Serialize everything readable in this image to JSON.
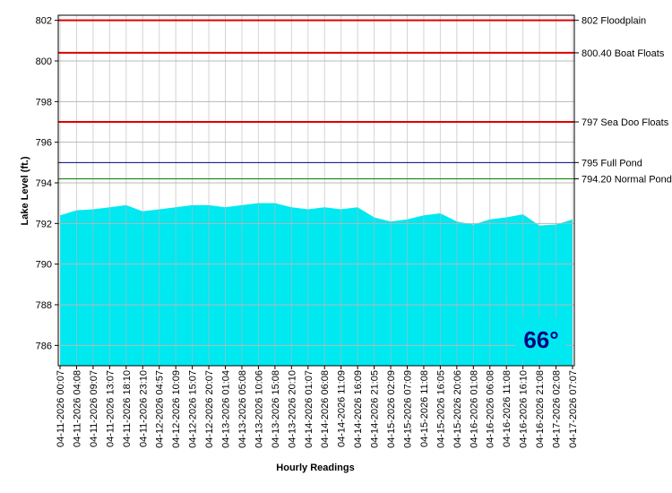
{
  "chart_data": {
    "type": "area",
    "y_label": "Lake Level (ft.)",
    "x_label": "Hourly Readings",
    "categories": [
      "04-11-2026 00:07",
      "04-11-2026 04:08",
      "04-11-2026 09:07",
      "04-11-2026 13:07",
      "04-11-2026 18:10",
      "04-11-2026 23:10",
      "04-12-2026 04:57",
      "04-12-2026 10:09",
      "04-12-2026 15:07",
      "04-12-2026 20:07",
      "04-13-2026 01:04",
      "04-13-2026 05:08",
      "04-13-2026 10:06",
      "04-13-2026 15:08",
      "04-13-2026 20:10",
      "04-14-2026 01:07",
      "04-14-2026 06:08",
      "04-14-2026 11:09",
      "04-14-2026 16:09",
      "04-14-2026 21:05",
      "04-15-2026 02:09",
      "04-15-2026 07:09",
      "04-15-2026 11:08",
      "04-15-2026 16:05",
      "04-15-2026 20:06",
      "04-16-2026 01:08",
      "04-16-2026 06:08",
      "04-16-2026 11:08",
      "04-16-2026 16:10",
      "04-16-2026 21:08",
      "04-17-2026 02:08",
      "04-17-2026 07:07"
    ],
    "values": [
      792.4,
      792.65,
      792.7,
      792.8,
      792.9,
      792.6,
      792.7,
      792.8,
      792.9,
      792.9,
      792.8,
      792.9,
      793.0,
      793.0,
      792.8,
      792.7,
      792.8,
      792.7,
      792.8,
      792.3,
      792.1,
      792.2,
      792.4,
      792.5,
      792.1,
      791.95,
      792.2,
      792.3,
      792.45,
      791.9,
      791.95,
      792.2
    ],
    "color": "#00e8f0",
    "ylim": [
      785,
      802.25
    ],
    "yticks": [
      786,
      788,
      790,
      792,
      794,
      796,
      798,
      800,
      802
    ],
    "grid": true,
    "reference_lines": [
      {
        "value": 802,
        "label": "802 Floodplain",
        "color": "#e00000"
      },
      {
        "value": 800.4,
        "label": "800.40 Boat Floats",
        "color": "#e00000"
      },
      {
        "value": 797,
        "label": "797 Sea Doo Floats",
        "color": "#e00000"
      },
      {
        "value": 795,
        "label": "795 Full Pond",
        "color": "#000080"
      },
      {
        "value": 794.2,
        "label": "794.20 Normal Pond",
        "color": "#008000"
      }
    ],
    "annotation": "66°"
  }
}
